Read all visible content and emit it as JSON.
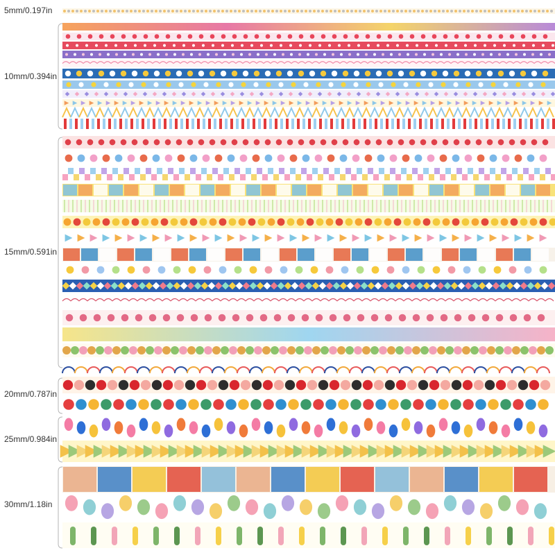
{
  "size_labels": [
    "5mm/0.197in",
    "10mm/0.394in",
    "15mm/0.591in",
    "20mm/0.787in",
    "25mm/0.984in",
    "30mm/1.18in"
  ]
}
